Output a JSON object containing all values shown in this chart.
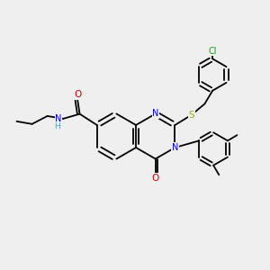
{
  "background_color": "#efefef",
  "bond_color": "#000000",
  "atom_colors": {
    "N": "#0000cc",
    "O": "#cc0000",
    "S": "#aaaa00",
    "Cl": "#00aa00",
    "C": "#000000",
    "H": "#5599aa"
  },
  "figsize": [
    3.0,
    3.0
  ],
  "dpi": 100,
  "lw": 1.3
}
